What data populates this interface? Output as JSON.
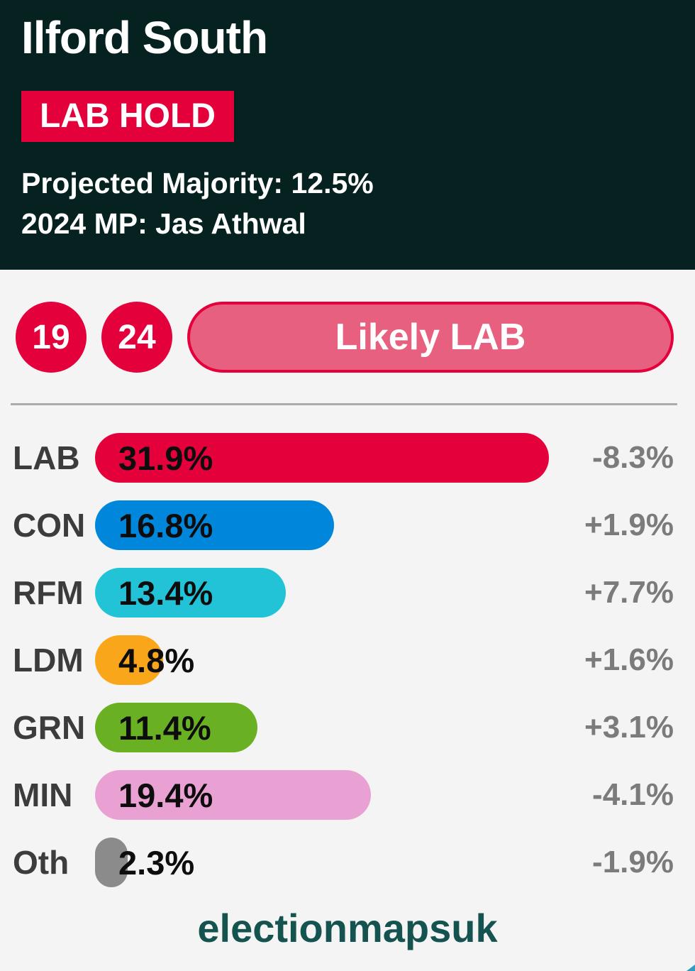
{
  "header": {
    "constituency": "Ilford South",
    "result_badge": "LAB HOLD",
    "projected_majority_line": "Projected Majority: 12.5%",
    "mp_line": "2024 MP: Jas Athwal"
  },
  "forecast": {
    "year_from": "19",
    "year_to": "24",
    "rating": "Likely LAB"
  },
  "chart_data": {
    "type": "bar",
    "title": "Projected vote share by party with change since last election",
    "categories": [
      "LAB",
      "CON",
      "RFM",
      "LDM",
      "GRN",
      "MIN",
      "Oth"
    ],
    "values": [
      31.9,
      16.8,
      13.4,
      4.8,
      11.4,
      19.4,
      2.3
    ],
    "value_labels": [
      "31.9%",
      "16.8%",
      "13.4%",
      "4.8%",
      "11.4%",
      "19.4%",
      "2.3%"
    ],
    "changes": [
      "-8.3%",
      "+1.9%",
      "+7.7%",
      "+1.6%",
      "+3.1%",
      "-4.1%",
      "-1.9%"
    ],
    "bar_colors": [
      "#e4003b",
      "#0087dc",
      "#23c3d7",
      "#faa61a",
      "#6ab023",
      "#e9a1d3",
      "#8b8b8b"
    ],
    "xlabel": "",
    "ylabel": "",
    "xlim": [
      0,
      40
    ],
    "grid": false,
    "legend": "none",
    "orientation": "horizontal"
  },
  "footer": {
    "watermark": "electionmapsuk"
  },
  "colors": {
    "header_background": "#062220",
    "body_background": "#f4f4f4",
    "accent_crimson": "#e4003b",
    "rating_pill_fill": "#e8607f",
    "party_label_text": "#3c3c3c",
    "change_label_text": "#7b7b7b",
    "watermark_teal": "#14534f",
    "divider_gray": "#ababab"
  }
}
